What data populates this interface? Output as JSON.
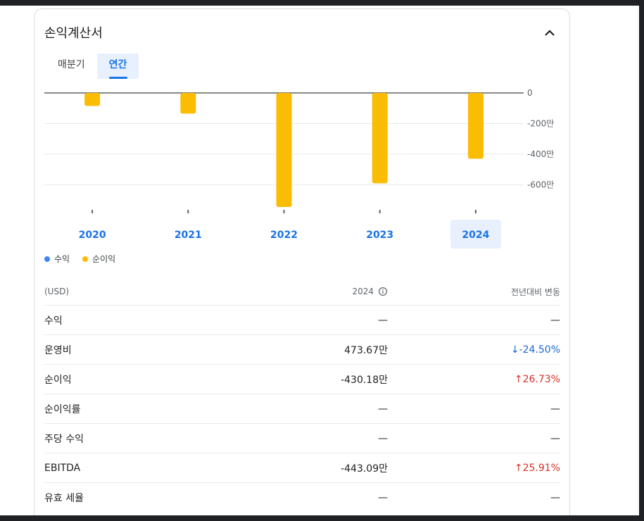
{
  "card": {
    "title": "손익계산서",
    "collapse_icon": "chevron-up-icon"
  },
  "tabs": [
    {
      "label": "매분기",
      "active": false
    },
    {
      "label": "연간",
      "active": true
    }
  ],
  "chart_data": {
    "type": "bar",
    "categories": [
      "2020",
      "2021",
      "2022",
      "2023",
      "2024"
    ],
    "selected_category": "2024",
    "series": [
      {
        "name": "수익",
        "values": [
          null,
          null,
          null,
          null,
          null
        ],
        "color": "#4285f4"
      },
      {
        "name": "순이익",
        "values": [
          -85,
          -135,
          -745,
          -590,
          -430
        ],
        "color": "#fbbc04"
      }
    ],
    "y_ticks": [
      {
        "value": 0,
        "label": "0"
      },
      {
        "value": -200,
        "label": "-200만"
      },
      {
        "value": -400,
        "label": "-400만"
      },
      {
        "value": -600,
        "label": "-600만"
      }
    ],
    "ylim": [
      -780,
      0
    ],
    "grid": true
  },
  "legend": [
    {
      "label": "수익",
      "color": "#4285f4"
    },
    {
      "label": "순이익",
      "color": "#fbbc04"
    }
  ],
  "table": {
    "header": {
      "col1": "(USD)",
      "col2": "2024",
      "col3": "전년대비 변동",
      "info_icon": "info-icon"
    },
    "rows": [
      {
        "label": "수익",
        "value": "—",
        "change": "—",
        "dir": "none"
      },
      {
        "label": "운영비",
        "value": "473.67만",
        "change": "↓-24.50%",
        "dir": "down"
      },
      {
        "label": "순이익",
        "value": "-430.18만",
        "change": "↑26.73%",
        "dir": "up"
      },
      {
        "label": "순이익률",
        "value": "—",
        "change": "—",
        "dir": "none"
      },
      {
        "label": "주당 수익",
        "value": "—",
        "change": "—",
        "dir": "none"
      },
      {
        "label": "EBITDA",
        "value": "-443.09만",
        "change": "↑25.91%",
        "dir": "up"
      },
      {
        "label": "유효 세율",
        "value": "—",
        "change": "—",
        "dir": "none"
      }
    ]
  }
}
